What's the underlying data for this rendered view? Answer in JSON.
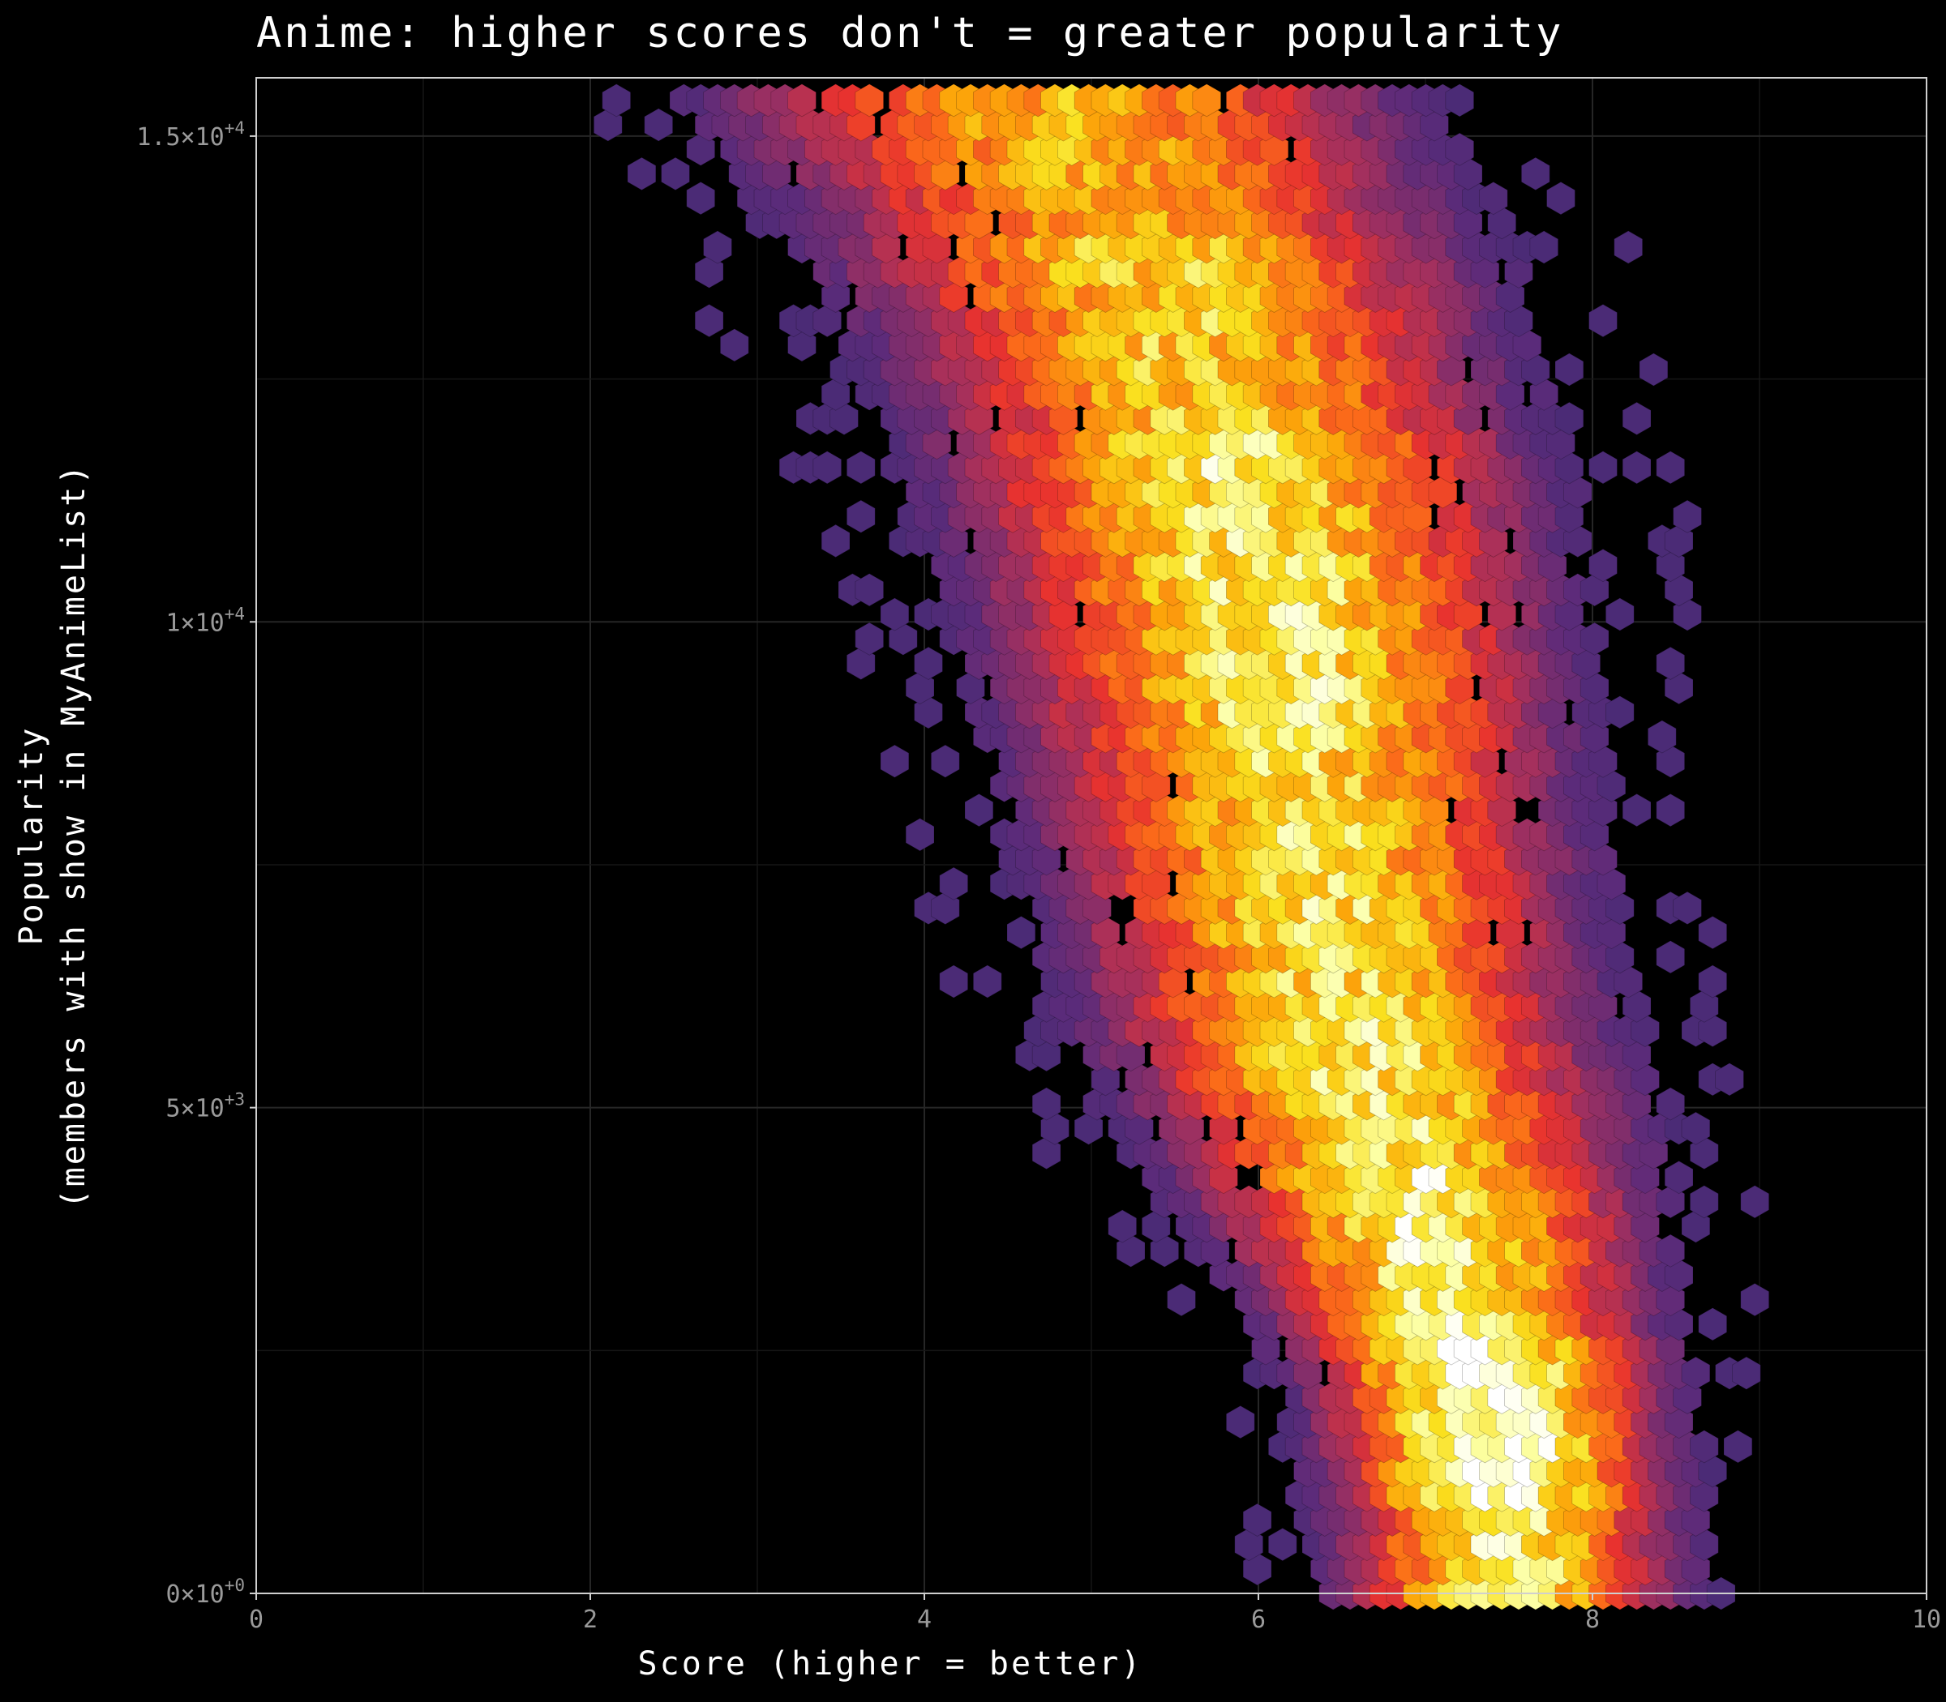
{
  "chart_data": {
    "type": "hexbin",
    "title": "Anime: higher scores don't = greater popularity",
    "xlabel": "Score (higher = better)",
    "ylabel_line1": "Popularity",
    "ylabel_line2": "(members with show in MyAnimeList)",
    "xlim": [
      0,
      10
    ],
    "ylim": [
      0,
      15600
    ],
    "x_ticks": [
      {
        "value": 0,
        "label": "0"
      },
      {
        "value": 2,
        "label": "2"
      },
      {
        "value": 4,
        "label": "4"
      },
      {
        "value": 6,
        "label": "6"
      },
      {
        "value": 8,
        "label": "8"
      },
      {
        "value": 10,
        "label": "10"
      }
    ],
    "y_ticks": [
      {
        "value": 0,
        "base": "0×10",
        "exp": "+0"
      },
      {
        "value": 5000,
        "base": "5×10",
        "exp": "+3"
      },
      {
        "value": 10000,
        "base": "1×10",
        "exp": "+4"
      },
      {
        "value": 15000,
        "base": "1.5×10",
        "exp": "+4"
      }
    ],
    "grid": true,
    "legend": "none",
    "colormap": [
      "#2d2a6e",
      "#5c2b7a",
      "#a3305e",
      "#e8322f",
      "#fb6a1a",
      "#fca50a",
      "#fae01e",
      "#fcffa4",
      "#ffffff"
    ],
    "density_ridge": [
      {
        "y": 600,
        "x": 7.5
      },
      {
        "y": 2000,
        "x": 7.4
      },
      {
        "y": 4000,
        "x": 7.0
      },
      {
        "y": 6000,
        "x": 6.5
      },
      {
        "y": 8000,
        "x": 6.3
      },
      {
        "y": 10000,
        "x": 6.1
      },
      {
        "y": 12000,
        "x": 5.8
      },
      {
        "y": 14000,
        "x": 5.3
      },
      {
        "y": 15300,
        "x": 4.8
      }
    ],
    "note_density": "hexagon color encodes count of shows per bin; brightest bins near score 7.4, popularity ~1000-2000"
  }
}
